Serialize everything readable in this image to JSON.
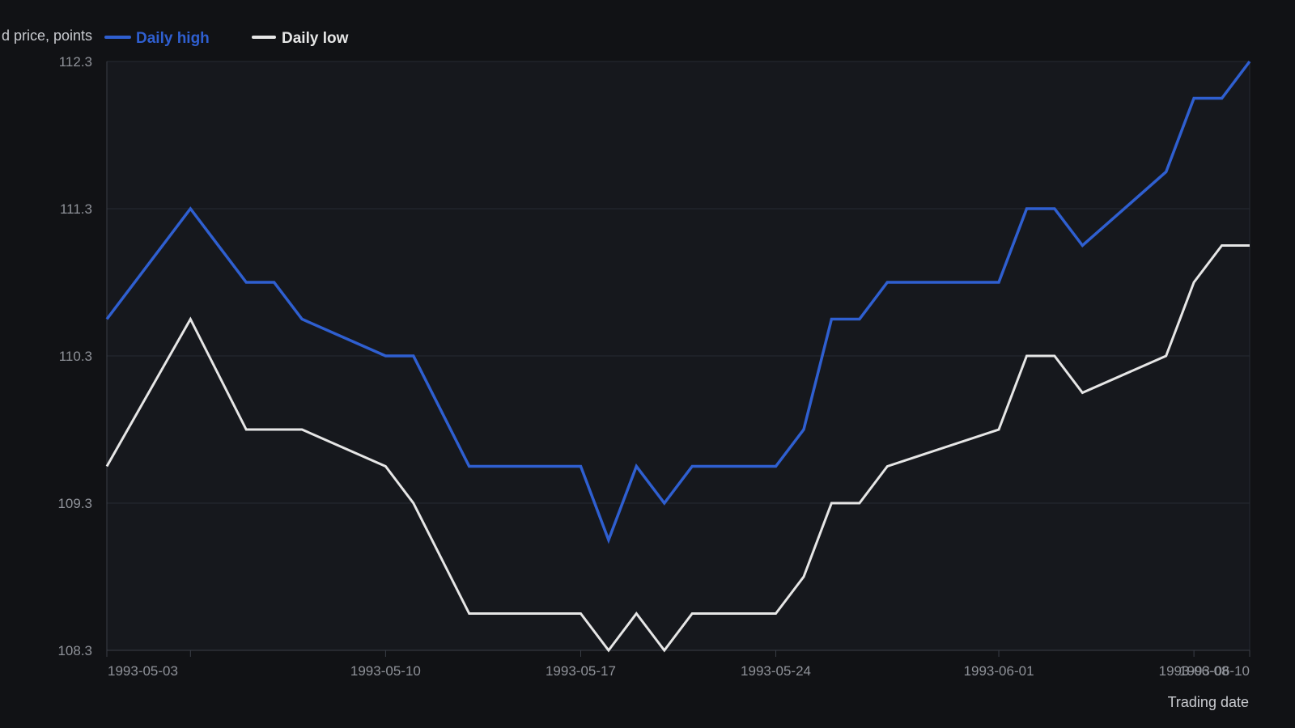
{
  "chart_data": {
    "type": "line",
    "title": "",
    "xlabel": "Trading date",
    "ylabel": "d price, points",
    "ylim": [
      108.3,
      112.3
    ],
    "yticks": [
      "112.3",
      "111.3",
      "110.3",
      "109.3",
      "108.3"
    ],
    "xlim": [
      "1993-04-30",
      "1993-06-10"
    ],
    "xticks": [
      "1993-05-03",
      "1993-05-10",
      "1993-05-17",
      "1993-05-24",
      "1993-06-01",
      "1993-06-08",
      "1993-06-10"
    ],
    "grid": true,
    "legend": "top-left",
    "colors": {
      "background": "#111215",
      "plot_background": "#16181d",
      "gridline": "#262a32",
      "axis": "#3a3e47",
      "tick_text": "#8f9299",
      "title_text": "#c9cbd0"
    },
    "x": [
      "1993-04-30",
      "1993-05-03",
      "1993-05-05",
      "1993-05-06",
      "1993-05-07",
      "1993-05-10",
      "1993-05-11",
      "1993-05-13",
      "1993-05-14",
      "1993-05-17",
      "1993-05-18",
      "1993-05-19",
      "1993-05-20",
      "1993-05-21",
      "1993-05-24",
      "1993-05-25",
      "1993-05-26",
      "1993-05-27",
      "1993-05-28",
      "1993-06-01",
      "1993-06-02",
      "1993-06-03",
      "1993-06-04",
      "1993-06-07",
      "1993-06-08",
      "1993-06-09",
      "1993-06-10"
    ],
    "series": [
      {
        "name": "Daily high",
        "color": "#2f5fd0",
        "values": [
          110.55,
          111.3,
          110.8,
          110.8,
          110.55,
          110.3,
          110.3,
          109.55,
          109.55,
          109.55,
          109.05,
          109.55,
          109.3,
          109.55,
          109.55,
          109.8,
          110.55,
          110.55,
          110.8,
          110.8,
          111.3,
          111.3,
          111.05,
          111.55,
          112.05,
          112.05,
          112.3
        ]
      },
      {
        "name": "Daily low",
        "color": "#e6e6e6",
        "values": [
          109.55,
          110.55,
          109.8,
          109.8,
          109.8,
          109.55,
          109.3,
          108.55,
          108.55,
          108.55,
          108.3,
          108.55,
          108.3,
          108.55,
          108.55,
          108.8,
          109.3,
          109.3,
          109.55,
          109.8,
          110.3,
          110.3,
          110.05,
          110.3,
          110.8,
          111.05,
          111.05
        ]
      }
    ]
  }
}
